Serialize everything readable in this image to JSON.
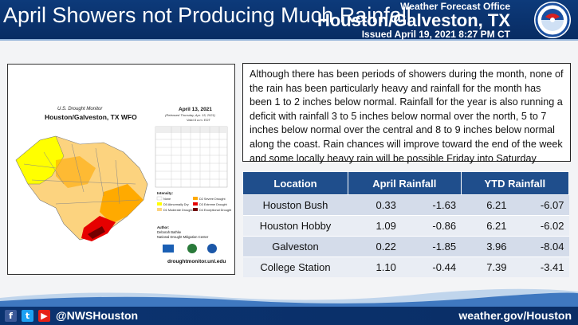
{
  "header": {
    "title": "April Showers not Producing  Much Rainfall",
    "office_label": "Weather Forecast Office",
    "office_name": "Houston/Galveston, TX",
    "issued": "Issued April 19, 2021 8:27 PM CT"
  },
  "map": {
    "source": "U.S. Drought Monitor",
    "region": "Houston/Galveston, TX WFO",
    "date": "April 13, 2021",
    "released": "(Released Thursday, Apr. 15, 2021)",
    "valid": "Valid 8 a.m. EDT",
    "url": "droughtmonitor.unl.edu",
    "author_label": "Author:",
    "author": "Deborah Bathke",
    "author_org": "National Drought Mitigation Center",
    "intensity_label": "Intensity:",
    "legend": [
      "None",
      "D0 Abnormally Dry",
      "D1 Moderate Drought",
      "D2 Severe Drought",
      "D3 Extreme Drought",
      "D4 Exceptional Drought"
    ]
  },
  "summary": "Although there has been periods of showers during the month, none of the rain has been particularly heavy and rainfall for the month has been 1 to 2 inches below normal. Rainfall for the year is also running a deficit with rainfall 3 to 5 inches below normal over the north, 5 to 7 inches below normal over the central and 8 to 9 inches below normal along the coast. Rain chances will improve toward the end of the week and some locally heavy rain will be possible Friday into Saturday",
  "table": {
    "headers": [
      "Location",
      "April Rainfall",
      "YTD Rainfall"
    ],
    "rows": [
      {
        "location": "Houston Bush",
        "april": "0.33",
        "april_dep": "-1.63",
        "ytd": "6.21",
        "ytd_dep": "-6.07"
      },
      {
        "location": "Houston Hobby",
        "april": "1.09",
        "april_dep": "-0.86",
        "ytd": "6.21",
        "ytd_dep": "-6.02"
      },
      {
        "location": "Galveston",
        "april": "0.22",
        "april_dep": "-1.85",
        "ytd": "3.96",
        "ytd_dep": "-8.04"
      },
      {
        "location": "College Station",
        "april": "1.10",
        "april_dep": "-0.44",
        "ytd": "7.39",
        "ytd_dep": "-3.41"
      }
    ]
  },
  "footer": {
    "handle": "@NWSHouston",
    "website": "weather.gov/Houston",
    "icons": [
      "facebook-icon",
      "twitter-icon",
      "youtube-icon"
    ]
  },
  "colors": {
    "header_bg": "#0d3a7a",
    "table_header": "#1f4e8c",
    "d0": "#ffff00",
    "d1": "#fcd37f",
    "d2": "#ffaa00",
    "d3": "#e60000",
    "d4": "#730000"
  }
}
